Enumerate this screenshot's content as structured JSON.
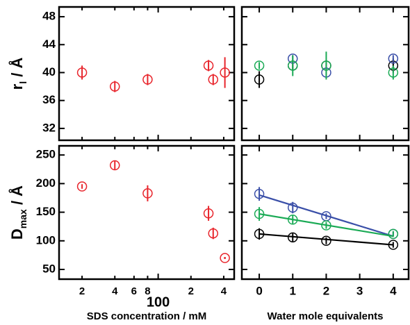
{
  "chart_data": [
    {
      "type": "scatter",
      "xscale": "log",
      "xlim": [
        12.3,
        499
      ],
      "ylim": [
        30.3,
        49.4
      ],
      "xticks": [
        {
          "value": 20,
          "label": "2"
        },
        {
          "value": 40,
          "label": "4"
        },
        {
          "value": 60,
          "label": "6"
        },
        {
          "value": 80,
          "label": "8"
        },
        100,
        {
          "value": 200,
          "label": "2"
        },
        {
          "value": 400,
          "label": "4"
        }
      ],
      "yticks": [
        32,
        36,
        40,
        44,
        48
      ],
      "show_xtick_labels": false,
      "show_ytick_labels": true,
      "ylabel": "r",
      "ylabel_sub": "l",
      "ylabel_rest": " / Å",
      "series": [
        {
          "color": "#e8242b",
          "x": [
            20,
            40,
            80,
            290,
            320,
            410
          ],
          "values": [
            40,
            38,
            39,
            41,
            39,
            40
          ],
          "errors": [
            1,
            0.8,
            0.8,
            0.8,
            0.8,
            2.2
          ]
        }
      ]
    },
    {
      "type": "scatter",
      "xlim": [
        -0.52,
        4.46
      ],
      "ylim": [
        30.3,
        49.4
      ],
      "xticks": [
        0,
        1,
        2,
        3,
        4
      ],
      "yticks": [
        32,
        36,
        40,
        44,
        48
      ],
      "show_xtick_labels": false,
      "show_ytick_labels": false,
      "series": [
        {
          "color": "#000000",
          "x": [
            0,
            1,
            2,
            4
          ],
          "values": [
            39,
            41,
            41,
            41
          ],
          "errors": [
            1.2,
            0.6,
            0.6,
            1
          ]
        },
        {
          "color": "#3a4fa8",
          "x": [
            1,
            2,
            4
          ],
          "values": [
            42,
            40,
            42
          ],
          "errors": [
            0.5,
            0.5,
            0.5
          ]
        },
        {
          "color": "#1aaa55",
          "x": [
            0,
            1,
            2,
            4
          ],
          "values": [
            41,
            41,
            41,
            40
          ],
          "errors": [
            0.5,
            1.5,
            2,
            1
          ]
        }
      ]
    },
    {
      "type": "scatter",
      "xscale": "log",
      "xlim": [
        12.3,
        499
      ],
      "ylim": [
        33,
        266
      ],
      "xticks": [
        {
          "value": 20,
          "label": "2"
        },
        {
          "value": 40,
          "label": "4"
        },
        {
          "value": 60,
          "label": "6"
        },
        {
          "value": 80,
          "label": "8"
        },
        100,
        {
          "value": 200,
          "label": "2"
        },
        {
          "value": 400,
          "label": "4"
        }
      ],
      "yticks": [
        50,
        100,
        150,
        200,
        250
      ],
      "show_xtick_labels": true,
      "show_ytick_labels": true,
      "ylabel": "D",
      "ylabel_sub": "max",
      "ylabel_rest": " / Å",
      "xlabel": "SDS concentration / mM",
      "series": [
        {
          "color": "#e8242b",
          "x": [
            20,
            40,
            80,
            290,
            320,
            410
          ],
          "values": [
            195,
            232,
            183,
            148,
            113,
            70
          ],
          "errors": [
            4,
            8,
            14,
            13,
            10,
            0
          ]
        }
      ]
    },
    {
      "type": "scatter",
      "xlim": [
        -0.52,
        4.46
      ],
      "ylim": [
        33,
        266
      ],
      "xticks": [
        0,
        1,
        2,
        3,
        4
      ],
      "yticks": [
        50,
        100,
        150,
        200,
        250
      ],
      "show_xtick_labels": true,
      "show_ytick_labels": false,
      "xlabel": "Water mole equivalents",
      "series": [
        {
          "color": "#3a4fa8",
          "x": [
            0,
            1,
            2,
            4
          ],
          "values": [
            182,
            158,
            143,
            112
          ],
          "errors": [
            12,
            10,
            5,
            4
          ],
          "fit_x": [
            0,
            4
          ],
          "fit": [
            180,
            108
          ]
        },
        {
          "color": "#1aaa55",
          "x": [
            0,
            1,
            2,
            4
          ],
          "values": [
            147,
            137,
            127,
            112
          ],
          "errors": [
            12,
            8,
            6,
            5
          ],
          "fit_x": [
            0,
            4
          ],
          "fit": [
            147,
            108
          ]
        },
        {
          "color": "#000000",
          "x": [
            0,
            1,
            2,
            4
          ],
          "values": [
            112,
            106,
            100,
            93
          ],
          "errors": [
            10,
            8,
            6,
            5
          ],
          "fit_x": [
            0,
            4
          ],
          "fit": [
            112,
            93
          ]
        }
      ]
    }
  ]
}
